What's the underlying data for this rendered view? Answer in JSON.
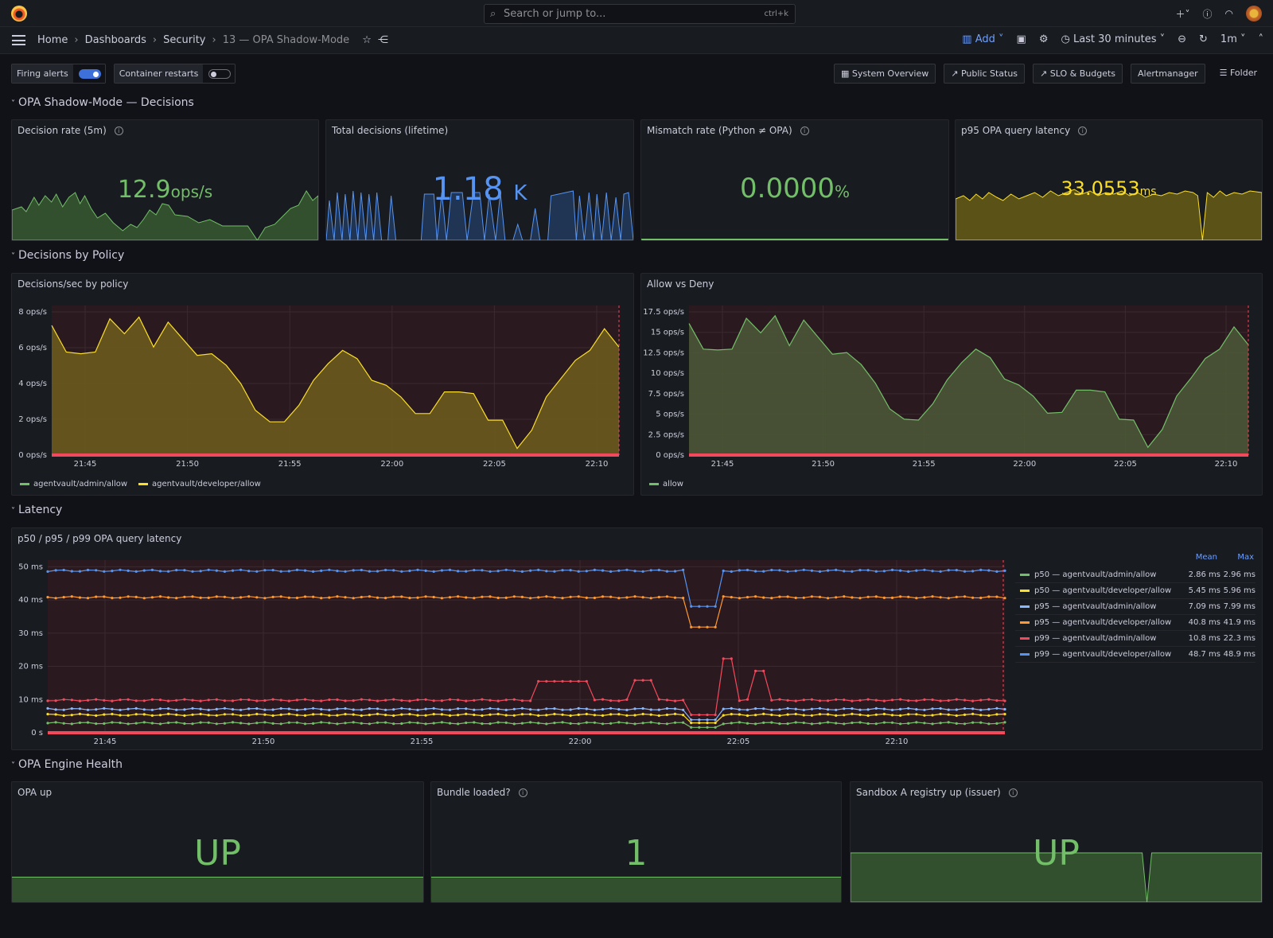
{
  "topbar": {
    "search_placeholder": "Search or jump to...",
    "shortcut": "ctrl+k"
  },
  "breadcrumbs": [
    "Home",
    "Dashboards",
    "Security",
    "13 — OPA Shadow-Mode"
  ],
  "toolbar": {
    "add_label": "Add",
    "time_range": "Last 30 minutes",
    "refresh": "1m"
  },
  "variables": [
    {
      "label": "Firing alerts",
      "enabled": true
    },
    {
      "label": "Container restarts",
      "enabled": false
    }
  ],
  "links": [
    "System Overview",
    "Public Status",
    "SLO & Budgets",
    "Alertmanager",
    "Folder"
  ],
  "rows": [
    "OPA Shadow-Mode — Decisions",
    "Decisions by Policy",
    "Latency",
    "OPA Engine Health"
  ],
  "stats": [
    {
      "title": "Decision rate (5m)",
      "value": "12.9",
      "unit": "ops/s",
      "color": "#73bf69"
    },
    {
      "title": "Total decisions (lifetime)",
      "value": "1.18",
      "unit": "K",
      "color": "#5794f2"
    },
    {
      "title": "Mismatch rate (Python ≠ OPA)",
      "value": "0.0000",
      "unit": "%",
      "color": "#73bf69"
    },
    {
      "title": "p95 OPA query latency",
      "value": "33.0553",
      "unit": "ms",
      "color": "#fade2a"
    }
  ],
  "health": [
    {
      "title": "OPA up",
      "value": "UP"
    },
    {
      "title": "Bundle loaded?",
      "value": "1"
    },
    {
      "title": "Sandbox A registry up (issuer)",
      "value": "UP"
    }
  ],
  "chart_data": [
    {
      "type": "area",
      "title": "Decisions/sec by policy",
      "x_ticks": [
        "21:45",
        "21:50",
        "21:55",
        "22:00",
        "22:05",
        "22:10"
      ],
      "y_ticks": [
        "0 ops/s",
        "2 ops/s",
        "4 ops/s",
        "6 ops/s",
        "8 ops/s"
      ],
      "ylim": [
        0,
        9
      ],
      "series": [
        {
          "name": "agentvault/admin/allow",
          "color": "#73bf69",
          "values": []
        },
        {
          "name": "agentvault/developer/allow",
          "color": "#fade2a",
          "values": [
            7.8,
            6.2,
            6.1,
            6.2,
            8.2,
            7.3,
            8.3,
            6.5,
            8.0,
            7.0,
            6.0,
            6.1,
            5.4,
            4.3,
            2.7,
            2.0,
            2.0,
            3.0,
            4.5,
            5.5,
            6.3,
            5.8,
            4.5,
            4.2,
            3.5,
            2.5,
            2.5,
            3.8,
            3.8,
            3.7,
            2.1,
            2.1,
            0.4,
            1.5,
            3.5,
            4.6,
            5.7,
            6.3,
            7.6,
            6.5
          ]
        }
      ]
    },
    {
      "type": "area",
      "title": "Allow vs Deny",
      "x_ticks": [
        "21:45",
        "21:50",
        "21:55",
        "22:00",
        "22:05",
        "22:10"
      ],
      "y_ticks": [
        "0 ops/s",
        "2.5 ops/s",
        "5 ops/s",
        "7.5 ops/s",
        "10 ops/s",
        "12.5 ops/s",
        "15 ops/s",
        "17.5 ops/s"
      ],
      "ylim": [
        0,
        17.5
      ],
      "series": [
        {
          "name": "allow",
          "color": "#73bf69",
          "values": [
            15.4,
            12.4,
            12.3,
            12.4,
            16.0,
            14.3,
            16.3,
            12.8,
            15.8,
            13.8,
            11.8,
            12.0,
            10.6,
            8.4,
            5.4,
            4.2,
            4.1,
            6.0,
            8.8,
            10.8,
            12.4,
            11.4,
            8.9,
            8.2,
            6.9,
            4.9,
            5.0,
            7.6,
            7.6,
            7.4,
            4.2,
            4.1,
            0.9,
            3.0,
            6.9,
            9.0,
            11.3,
            12.4,
            15.0,
            12.9
          ]
        }
      ]
    },
    {
      "type": "line",
      "title": "p50 / p95 / p99 OPA query latency",
      "x_ticks": [
        "21:45",
        "21:50",
        "21:55",
        "22:00",
        "22:05",
        "22:10"
      ],
      "y_ticks": [
        "0 s",
        "10 ms",
        "20 ms",
        "30 ms",
        "40 ms",
        "50 ms"
      ],
      "ylim": [
        0,
        52
      ],
      "legend_headers": [
        "Mean",
        "Max"
      ],
      "series": [
        {
          "name": "p50 — agentvault/admin/allow",
          "color": "#73bf69",
          "mean": "2.86 ms",
          "max": "2.96 ms",
          "base": 2.9
        },
        {
          "name": "p50 — agentvault/developer/allow",
          "color": "#fade2a",
          "mean": "5.45 ms",
          "max": "5.96 ms",
          "base": 5.4
        },
        {
          "name": "p95 — agentvault/admin/allow",
          "color": "#8ab8ff",
          "mean": "7.09 ms",
          "max": "7.99 ms",
          "base": 7.1
        },
        {
          "name": "p95 — agentvault/developer/allow",
          "color": "#ff9830",
          "mean": "40.8 ms",
          "max": "41.9 ms",
          "base": 40.8
        },
        {
          "name": "p99 — agentvault/admin/allow",
          "color": "#f2495c",
          "mean": "10.8 ms",
          "max": "22.3 ms",
          "base": 9.8
        },
        {
          "name": "p99 — agentvault/developer/allow",
          "color": "#5794f2",
          "mean": "48.7 ms",
          "max": "48.9 ms",
          "base": 48.8
        }
      ]
    }
  ]
}
